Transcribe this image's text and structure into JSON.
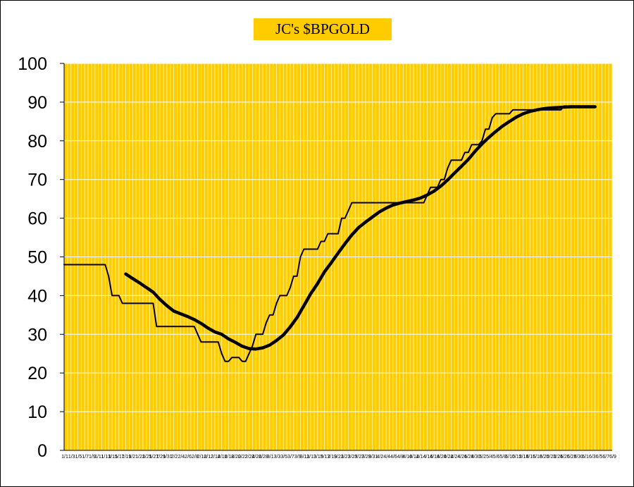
{
  "chart_data": {
    "type": "line",
    "title": "JC's $BPGOLD",
    "xlabel": "",
    "ylabel": "",
    "ylim": [
      0,
      100
    ],
    "yticks": [
      0,
      10,
      20,
      30,
      40,
      50,
      60,
      70,
      80,
      90,
      100
    ],
    "xticks_visible": [
      "1/1",
      "1/3",
      "1/5",
      "1/7",
      "1/9",
      "1/11",
      "1/13",
      "1/15",
      "1/17",
      "1/19",
      "1/21",
      "1/23",
      "1/25",
      "1/27",
      "1/29",
      "1/31",
      "2/2",
      "2/4",
      "2/6",
      "2/8",
      "2/10",
      "2/12",
      "2/14",
      "2/16",
      "2/18",
      "2/20",
      "2/22",
      "2/24",
      "2/26",
      "2/28",
      "3/1",
      "3/3",
      "3/5",
      "3/7",
      "3/9",
      "3/11",
      "3/13",
      "3/15",
      "3/17",
      "3/19",
      "3/21",
      "3/23",
      "3/25",
      "3/27",
      "3/29",
      "3/31",
      "4/2",
      "4/4",
      "4/6",
      "4/8",
      "4/10",
      "4/12",
      "4/14",
      "4/16",
      "4/18",
      "4/20",
      "4/22",
      "4/24",
      "4/26",
      "4/28",
      "4/30",
      "5/2",
      "5/4",
      "5/6",
      "5/8",
      "5/10",
      "5/12",
      "5/14",
      "5/16",
      "5/18",
      "5/20",
      "5/22",
      "5/24",
      "5/26",
      "5/28",
      "5/30",
      "6/1",
      "6/3",
      "6/5",
      "6/7",
      "6/9"
    ],
    "grid": true,
    "background": "#ffcc00",
    "series": [
      {
        "style": "thin",
        "color": "#000033",
        "points": [
          [
            0,
            48
          ],
          [
            12,
            48
          ],
          [
            13,
            45
          ],
          [
            14,
            40
          ],
          [
            16,
            40
          ],
          [
            17,
            38
          ],
          [
            26,
            38
          ],
          [
            27,
            32
          ],
          [
            38,
            32
          ],
          [
            40,
            28
          ],
          [
            45,
            28
          ],
          [
            46,
            25
          ],
          [
            47,
            23
          ],
          [
            48,
            23
          ],
          [
            49,
            24
          ],
          [
            51,
            24
          ],
          [
            52,
            23
          ],
          [
            53,
            23
          ],
          [
            55,
            27
          ],
          [
            56,
            30
          ],
          [
            58,
            30
          ],
          [
            59,
            33
          ],
          [
            60,
            35
          ],
          [
            61,
            35
          ],
          [
            62,
            38
          ],
          [
            63,
            40
          ],
          [
            65,
            40
          ],
          [
            66,
            42
          ],
          [
            67,
            45
          ],
          [
            68,
            45
          ],
          [
            69,
            50
          ],
          [
            70,
            52
          ],
          [
            74,
            52
          ],
          [
            75,
            54
          ],
          [
            76,
            54
          ],
          [
            77,
            56
          ],
          [
            80,
            56
          ],
          [
            81,
            60
          ],
          [
            82,
            60
          ],
          [
            83,
            62
          ],
          [
            84,
            64
          ],
          [
            105,
            64
          ],
          [
            106,
            66
          ],
          [
            107,
            68
          ],
          [
            109,
            68
          ],
          [
            110,
            70
          ],
          [
            111,
            70
          ],
          [
            112,
            73
          ],
          [
            113,
            75
          ],
          [
            116,
            75
          ],
          [
            117,
            77
          ],
          [
            118,
            77
          ],
          [
            119,
            79
          ],
          [
            121,
            79
          ],
          [
            122,
            80
          ],
          [
            123,
            83
          ],
          [
            124,
            83
          ],
          [
            125,
            86
          ],
          [
            126,
            87
          ],
          [
            130,
            87
          ],
          [
            131,
            88
          ],
          [
            145,
            88
          ],
          [
            146,
            89
          ],
          [
            155,
            89
          ]
        ]
      },
      {
        "style": "thick",
        "color": "#000000",
        "points": [
          [
            18,
            45.6
          ],
          [
            20,
            44.4
          ],
          [
            22,
            43.3
          ],
          [
            24,
            42.1
          ],
          [
            26,
            40.9
          ],
          [
            28,
            39.0
          ],
          [
            30,
            37.4
          ],
          [
            32,
            36.0
          ],
          [
            34,
            35.3
          ],
          [
            36,
            34.6
          ],
          [
            38,
            33.8
          ],
          [
            40,
            32.8
          ],
          [
            42,
            31.6
          ],
          [
            44,
            30.6
          ],
          [
            46,
            30.0
          ],
          [
            48,
            28.8
          ],
          [
            50,
            27.9
          ],
          [
            52,
            26.9
          ],
          [
            54,
            26.3
          ],
          [
            56,
            26.2
          ],
          [
            58,
            26.5
          ],
          [
            60,
            27.2
          ],
          [
            62,
            28.4
          ],
          [
            64,
            29.8
          ],
          [
            66,
            31.9
          ],
          [
            68,
            34.3
          ],
          [
            70,
            37.4
          ],
          [
            72,
            40.5
          ],
          [
            74,
            43.1
          ],
          [
            76,
            46.1
          ],
          [
            78,
            48.5
          ],
          [
            80,
            51.0
          ],
          [
            82,
            53.4
          ],
          [
            84,
            55.7
          ],
          [
            86,
            57.6
          ],
          [
            88,
            59.0
          ],
          [
            90,
            60.3
          ],
          [
            92,
            61.6
          ],
          [
            94,
            62.6
          ],
          [
            96,
            63.4
          ],
          [
            98,
            63.9
          ],
          [
            100,
            64.3
          ],
          [
            102,
            64.7
          ],
          [
            104,
            65.2
          ],
          [
            106,
            66.0
          ],
          [
            108,
            67.0
          ],
          [
            110,
            68.3
          ],
          [
            112,
            69.9
          ],
          [
            114,
            71.7
          ],
          [
            116,
            73.4
          ],
          [
            118,
            75.2
          ],
          [
            120,
            77.3
          ],
          [
            122,
            79.2
          ],
          [
            124,
            80.9
          ],
          [
            126,
            82.4
          ],
          [
            128,
            83.8
          ],
          [
            130,
            85.0
          ],
          [
            132,
            86.1
          ],
          [
            134,
            87.0
          ],
          [
            136,
            87.6
          ],
          [
            138,
            88.0
          ],
          [
            140,
            88.3
          ],
          [
            142,
            88.5
          ],
          [
            144,
            88.6
          ],
          [
            146,
            88.7
          ],
          [
            148,
            88.8
          ],
          [
            150,
            88.8
          ],
          [
            152,
            88.8
          ],
          [
            154,
            88.8
          ],
          [
            155,
            88.8
          ]
        ]
      }
    ]
  }
}
